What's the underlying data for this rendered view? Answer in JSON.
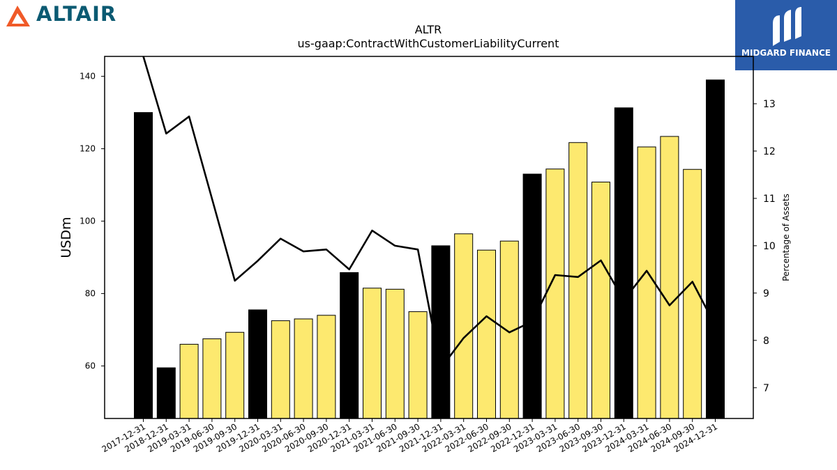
{
  "brand": {
    "name": "ALTAIR",
    "color": "#0b5a72",
    "icon_color": "#f05a28",
    "icon": "altair-logo-icon"
  },
  "watermark": {
    "name": "MIDGARD FINANCE",
    "bg": "#2a5caa",
    "icon": "midgard-logo-icon"
  },
  "chart_data": {
    "type": "bar",
    "title": "ALTR",
    "subtitle": "us-gaap:ContractWithCustomerLiabilityCurrent",
    "ylabel": "USDm",
    "y2label": "Percentage of Assets",
    "ylim": [
      45.5,
      145.5
    ],
    "y2lim": [
      6.35,
      14.0
    ],
    "yticks": [
      60,
      80,
      100,
      120,
      140
    ],
    "y2ticks": [
      7,
      8,
      9,
      10,
      11,
      12,
      13
    ],
    "categories": [
      "2017-12-31",
      "2018-12-31",
      "2019-03-31",
      "2019-06-30",
      "2019-09-30",
      "2019-12-31",
      "2020-03-31",
      "2020-06-30",
      "2020-09-30",
      "2020-12-31",
      "2021-03-31",
      "2021-06-30",
      "2021-09-30",
      "2021-12-31",
      "2022-03-31",
      "2022-06-30",
      "2022-09-30",
      "2022-12-31",
      "2023-03-31",
      "2023-06-30",
      "2023-09-30",
      "2023-12-31",
      "2024-03-31",
      "2024-06-30",
      "2024-09-30",
      "2024-12-31"
    ],
    "series": [
      {
        "type": "bar",
        "values": [
          130.0,
          59.5,
          66.0,
          67.5,
          69.3,
          75.5,
          72.5,
          73.0,
          74.0,
          85.8,
          81.5,
          81.2,
          75.0,
          93.2,
          96.5,
          92.0,
          94.5,
          113.0,
          114.4,
          121.7,
          110.8,
          131.3,
          120.5,
          123.4,
          114.3,
          139.0
        ]
      },
      {
        "type": "line",
        "values": [
          14.0,
          12.37,
          12.73,
          null,
          9.26,
          9.68,
          10.15,
          9.88,
          9.92,
          9.5,
          10.32,
          10.0,
          9.92,
          7.41,
          8.05,
          8.51,
          8.17,
          8.4,
          9.38,
          9.34,
          9.69,
          8.85,
          9.47,
          8.74,
          9.24,
          8.31
        ]
      }
    ],
    "highlight_categories": [
      "2017-12-31",
      "2018-12-31",
      "2019-12-31",
      "2020-12-31",
      "2021-12-31",
      "2022-12-31",
      "2023-12-31",
      "2024-12-31"
    ],
    "colors": {
      "bar": "#fde96f",
      "bar_highlight": "#000000",
      "line": "#000000",
      "edge": "#000000"
    },
    "grid": false,
    "legend": "none"
  }
}
